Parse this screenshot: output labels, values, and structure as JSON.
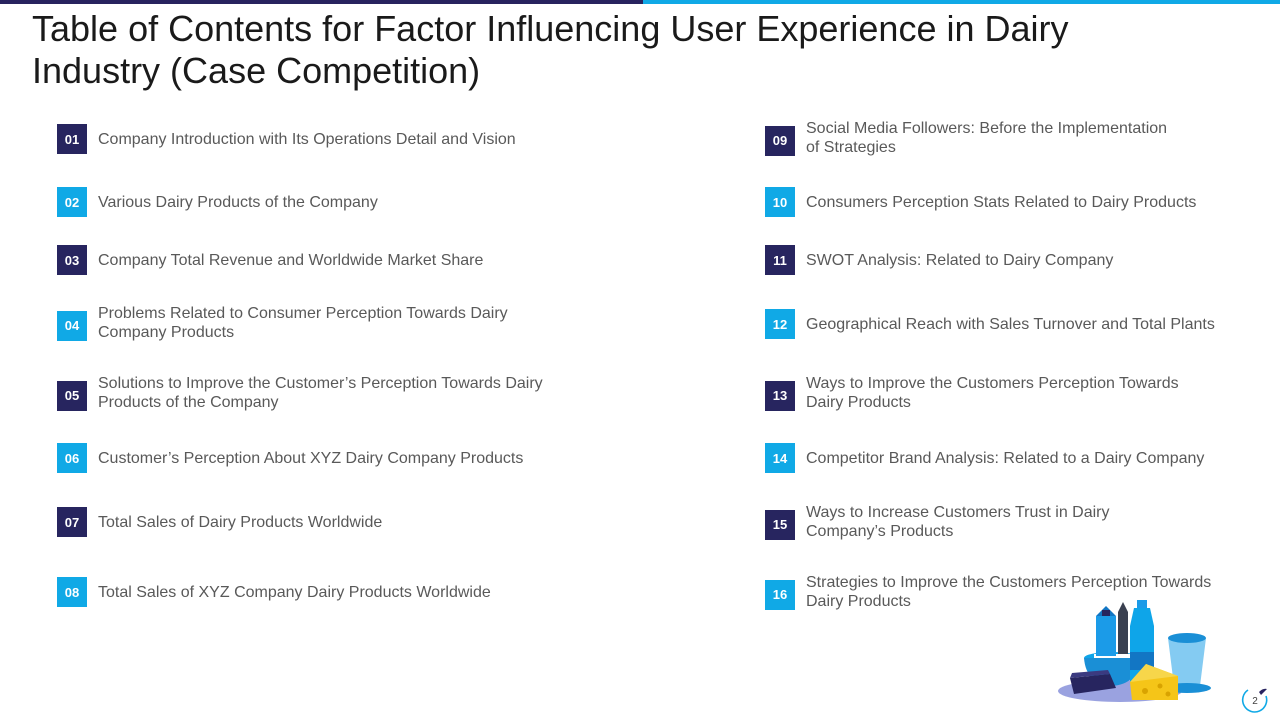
{
  "slide": {
    "title": "Table of Contents for Factor Influencing User Experience in Dairy Industry (Case Competition)",
    "page_number": "2",
    "colors": {
      "dark_accent": "#27255f",
      "light_accent": "#10a9e6",
      "text": "#595959"
    }
  },
  "toc": {
    "left": [
      {
        "num": "01",
        "text": "Company Introduction with Its Operations Detail and Vision"
      },
      {
        "num": "02",
        "text": "Various Dairy Products of the Company"
      },
      {
        "num": "03",
        "text": "Company Total Revenue and Worldwide Market Share"
      },
      {
        "num": "04",
        "text": "Problems Related to Consumer Perception Towards Dairy Company Products"
      },
      {
        "num": "05",
        "text": "Solutions to Improve the Customer’s Perception Towards Dairy Products of the Company"
      },
      {
        "num": "06",
        "text": "Customer’s Perception About XYZ Dairy Company Products"
      },
      {
        "num": "07",
        "text": "Total Sales of Dairy Products Worldwide"
      },
      {
        "num": "08",
        "text": "Total Sales of XYZ Company Dairy Products Worldwide"
      }
    ],
    "right": [
      {
        "num": "09",
        "text": "Social Media Followers: Before the Implementation of Strategies"
      },
      {
        "num": "10",
        "text": "Consumers Perception Stats Related to Dairy Products"
      },
      {
        "num": "11",
        "text": "SWOT Analysis: Related to Dairy Company"
      },
      {
        "num": "12",
        "text": "Geographical Reach with Sales Turnover and Total Plants"
      },
      {
        "num": "13",
        "text": "Ways to Improve the Customers Perception Towards Dairy Products"
      },
      {
        "num": "14",
        "text": "Competitor Brand Analysis: Related to a Dairy Company"
      },
      {
        "num": "15",
        "text": "Ways to Increase Customers Trust in Dairy Company’s Products"
      },
      {
        "num": "16",
        "text": "Strategies to Improve the Customers Perception Towards Dairy Products"
      }
    ]
  },
  "illustration": {
    "icon": "dairy-products-illustration"
  }
}
